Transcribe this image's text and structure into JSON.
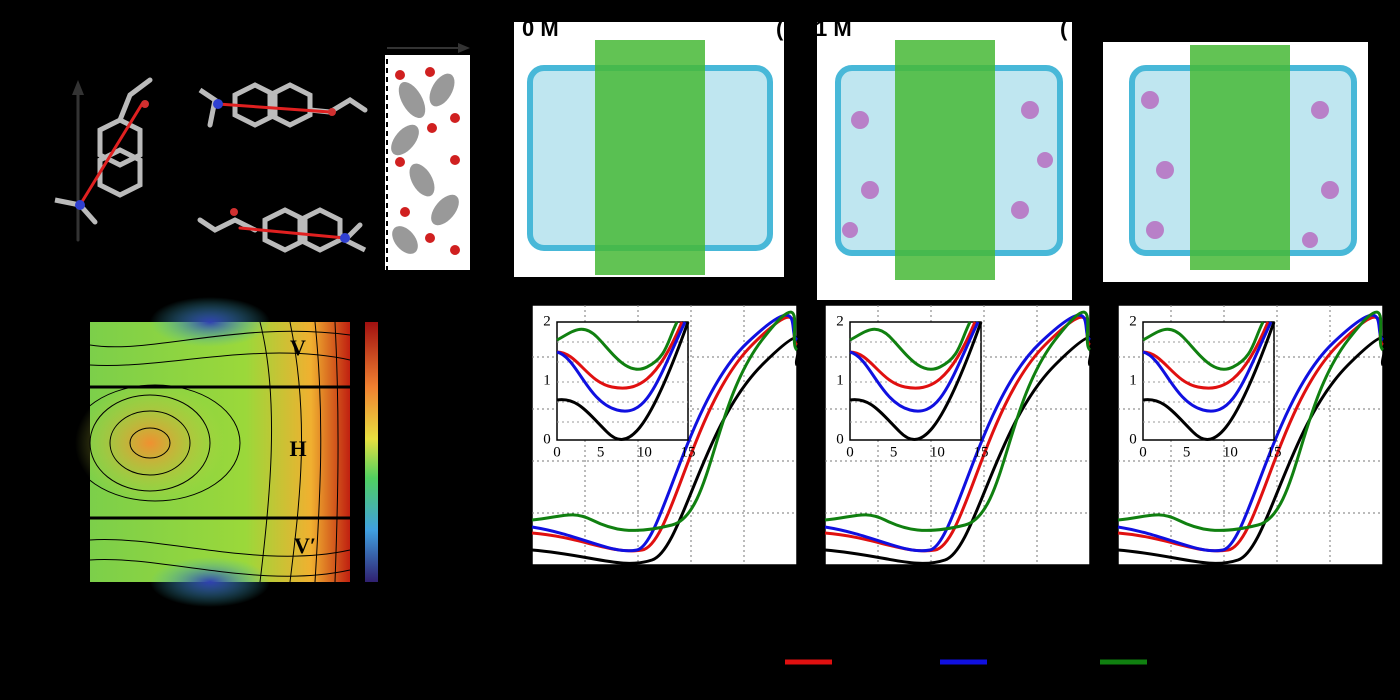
{
  "top_labels": {
    "first": "0 M",
    "second_paren": "(",
    "second": "1 M",
    "third_paren": "("
  },
  "contour": {
    "regions": [
      "V",
      "H",
      "V′"
    ]
  },
  "plots": [
    {
      "yticks": [
        "2",
        "1",
        "0"
      ],
      "xticks": [
        "0",
        "5",
        "10",
        "15"
      ]
    },
    {
      "yticks": [
        "2",
        "1",
        "0"
      ],
      "xticks": [
        "0",
        "5",
        "10",
        "15"
      ]
    },
    {
      "yticks": [
        "2",
        "1",
        "0"
      ],
      "xticks": [
        "0",
        "5",
        "10",
        "15"
      ]
    }
  ]
}
